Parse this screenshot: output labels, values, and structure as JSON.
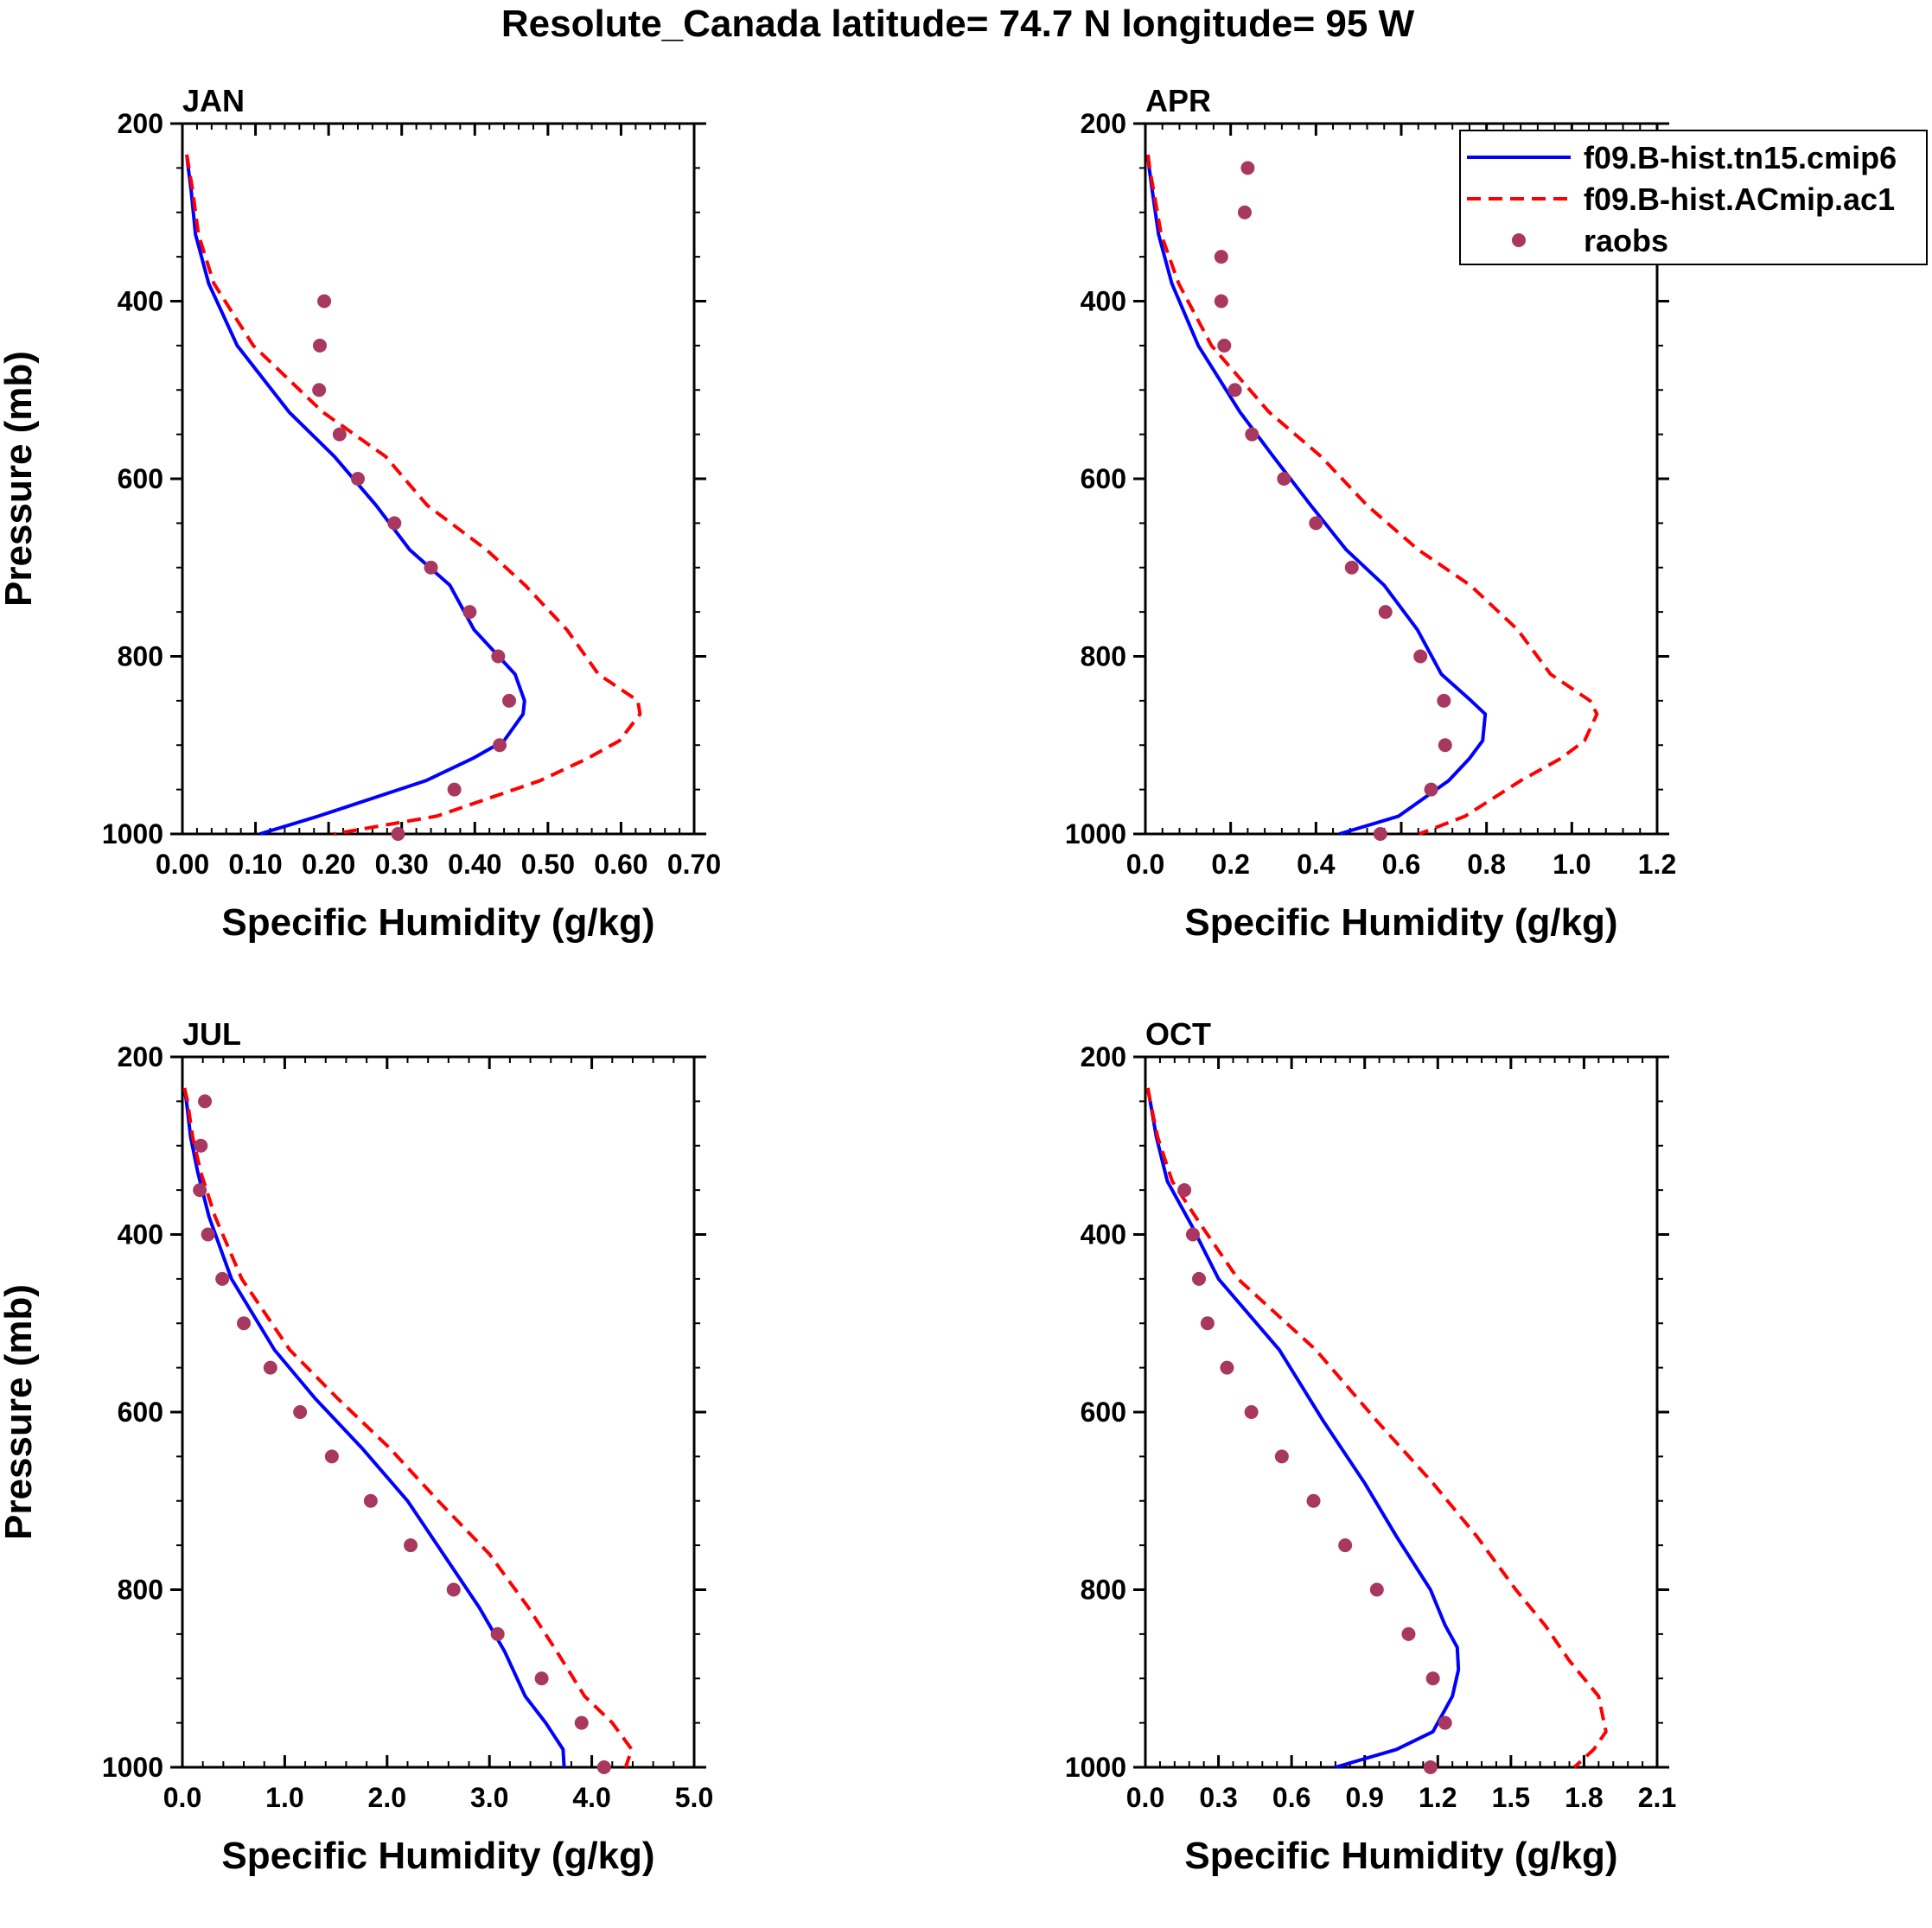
{
  "title": "Resolute_Canada  latitude= 74.7 N longitude= 95 W",
  "legend": {
    "position": "top-right of APR panel",
    "entries": [
      {
        "label": "f09.B-hist.tn15.cmip6",
        "style": "solid",
        "color": "#0000ff"
      },
      {
        "label": "f09.B-hist.ACmip.ac1",
        "style": "dashed",
        "color": "#ff0000"
      },
      {
        "label": "raobs",
        "style": "marker",
        "color": "#a8385f"
      }
    ]
  },
  "chart_data": [
    {
      "type": "line",
      "title": "JAN",
      "xlabel": "Specific Humidity (g/kg)",
      "ylabel": "Pressure (mb)",
      "xlim": [
        0,
        0.7
      ],
      "xticks": [
        "0.00",
        "0.10",
        "0.20",
        "0.30",
        "0.40",
        "0.50",
        "0.60",
        "0.70"
      ],
      "ylim": [
        200,
        1000
      ],
      "yticks": [
        "200",
        "400",
        "600",
        "800",
        "1000"
      ],
      "series": [
        {
          "name": "f09.B-hist.tn15.cmip6",
          "style": "solid",
          "color": "#0000ff",
          "x": [
            0.006,
            0.008,
            0.012,
            0.018,
            0.036,
            0.075,
            0.146,
            0.208,
            0.265,
            0.311,
            0.366,
            0.399,
            0.455,
            0.468,
            0.466,
            0.44,
            0.397,
            0.333,
            0.186,
            0.106
          ],
          "y": [
            235,
            250,
            275,
            325,
            380,
            450,
            525,
            575,
            630,
            680,
            720,
            770,
            820,
            850,
            865,
            895,
            915,
            940,
            980,
            1000
          ]
        },
        {
          "name": "f09.B-hist.ACmip.ac1",
          "style": "dashed",
          "color": "#ff0000",
          "x": [
            0.006,
            0.009,
            0.014,
            0.022,
            0.043,
            0.097,
            0.192,
            0.278,
            0.335,
            0.416,
            0.469,
            0.526,
            0.569,
            0.623,
            0.626,
            0.598,
            0.554,
            0.489,
            0.348,
            0.207
          ],
          "y": [
            235,
            250,
            275,
            325,
            380,
            450,
            525,
            575,
            630,
            680,
            720,
            770,
            820,
            850,
            865,
            895,
            915,
            940,
            980,
            1000
          ]
        },
        {
          "name": "raobs",
          "style": "marker",
          "color": "#a8385f",
          "x": [
            0.194,
            0.188,
            0.187,
            0.215,
            0.24,
            0.29,
            0.34,
            0.393,
            0.432,
            0.447,
            0.434,
            0.372,
            0.295
          ],
          "y": [
            400,
            450,
            500,
            550,
            600,
            650,
            700,
            750,
            800,
            850,
            900,
            950,
            1000
          ]
        }
      ]
    },
    {
      "type": "line",
      "title": "APR",
      "xlabel": "Specific Humidity (g/kg)",
      "ylabel": "",
      "xlim": [
        0,
        1.2
      ],
      "xticks": [
        "0.0",
        "0.2",
        "0.4",
        "0.6",
        "0.8",
        "1.0",
        "1.2"
      ],
      "ylim": [
        200,
        1000
      ],
      "yticks": [
        "200",
        "400",
        "600",
        "800",
        "1000"
      ],
      "series": [
        {
          "name": "f09.B-hist.tn15.cmip6",
          "style": "solid",
          "color": "#0000ff",
          "x": [
            0.006,
            0.009,
            0.016,
            0.031,
            0.062,
            0.124,
            0.222,
            0.3,
            0.388,
            0.471,
            0.56,
            0.638,
            0.694,
            0.764,
            0.797,
            0.791,
            0.76,
            0.711,
            0.594,
            0.455
          ],
          "y": [
            235,
            250,
            275,
            325,
            380,
            450,
            525,
            575,
            630,
            680,
            720,
            770,
            820,
            850,
            865,
            895,
            915,
            940,
            980,
            1000
          ]
        },
        {
          "name": "f09.B-hist.ACmip.ac1",
          "style": "dashed",
          "color": "#ff0000",
          "x": [
            0.006,
            0.01,
            0.019,
            0.037,
            0.078,
            0.155,
            0.29,
            0.412,
            0.52,
            0.64,
            0.762,
            0.873,
            0.95,
            1.043,
            1.059,
            1.03,
            0.974,
            0.88,
            0.75,
            0.642
          ],
          "y": [
            235,
            250,
            275,
            325,
            380,
            450,
            525,
            575,
            630,
            680,
            720,
            770,
            820,
            850,
            865,
            895,
            915,
            940,
            980,
            1000
          ]
        },
        {
          "name": "raobs",
          "style": "marker",
          "color": "#a8385f",
          "x": [
            0.24,
            0.233,
            0.178,
            0.178,
            0.185,
            0.21,
            0.25,
            0.325,
            0.4,
            0.484,
            0.563,
            0.645,
            0.7,
            0.703,
            0.67,
            0.551
          ],
          "y": [
            250,
            300,
            350,
            400,
            450,
            500,
            550,
            600,
            650,
            700,
            750,
            800,
            850,
            900,
            950,
            1000
          ]
        }
      ]
    },
    {
      "type": "line",
      "title": "JUL",
      "xlabel": "Specific Humidity (g/kg)",
      "ylabel": "Pressure (mb)",
      "xlim": [
        0,
        5
      ],
      "xticks": [
        "0.0",
        "1.0",
        "2.0",
        "3.0",
        "4.0",
        "5.0"
      ],
      "ylim": [
        200,
        1000
      ],
      "yticks": [
        "200",
        "400",
        "600",
        "800",
        "1000"
      ],
      "series": [
        {
          "name": "f09.B-hist.tn15.cmip6",
          "style": "solid",
          "color": "#0000ff",
          "x": [
            0.02,
            0.04,
            0.08,
            0.15,
            0.26,
            0.48,
            0.9,
            1.3,
            1.75,
            2.2,
            2.55,
            2.9,
            3.15,
            3.35,
            3.55,
            3.72,
            3.73
          ],
          "y": [
            235,
            250,
            290,
            330,
            380,
            450,
            530,
            585,
            640,
            700,
            760,
            820,
            870,
            920,
            950,
            980,
            1000
          ]
        },
        {
          "name": "f09.B-hist.ACmip.ac1",
          "style": "dashed",
          "color": "#ff0000",
          "x": [
            0.02,
            0.05,
            0.1,
            0.18,
            0.32,
            0.58,
            1.05,
            1.52,
            2.02,
            2.5,
            3.0,
            3.38,
            3.66,
            3.93,
            4.2,
            4.39,
            4.33
          ],
          "y": [
            235,
            250,
            290,
            330,
            380,
            450,
            530,
            585,
            640,
            700,
            760,
            820,
            870,
            920,
            950,
            980,
            1000
          ]
        },
        {
          "name": "raobs",
          "style": "marker",
          "color": "#a8385f",
          "x": [
            0.22,
            0.18,
            0.17,
            0.25,
            0.39,
            0.6,
            0.86,
            1.15,
            1.46,
            1.84,
            2.23,
            2.65,
            3.08,
            3.51,
            3.9,
            4.12
          ],
          "y": [
            250,
            300,
            350,
            400,
            450,
            500,
            550,
            600,
            650,
            700,
            750,
            800,
            850,
            900,
            950,
            1000
          ]
        }
      ]
    },
    {
      "type": "line",
      "title": "OCT",
      "xlabel": "Specific Humidity (g/kg)",
      "ylabel": "",
      "xlim": [
        0,
        2.1
      ],
      "xticks": [
        "0.0",
        "0.3",
        "0.6",
        "0.9",
        "1.2",
        "1.5",
        "1.8",
        "2.1"
      ],
      "ylim": [
        200,
        1000
      ],
      "yticks": [
        "200",
        "400",
        "600",
        "800",
        "1000"
      ],
      "series": [
        {
          "name": "f09.B-hist.tn15.cmip6",
          "style": "solid",
          "color": "#0000ff",
          "x": [
            0.01,
            0.02,
            0.045,
            0.09,
            0.19,
            0.3,
            0.55,
            0.73,
            0.9,
            1.03,
            1.17,
            1.23,
            1.28,
            1.285,
            1.26,
            1.18,
            1.03,
            0.78
          ],
          "y": [
            235,
            250,
            290,
            340,
            390,
            450,
            530,
            610,
            680,
            740,
            800,
            840,
            865,
            890,
            920,
            960,
            980,
            1000
          ]
        },
        {
          "name": "f09.B-hist.ACmip.ac1",
          "style": "dashed",
          "color": "#ff0000",
          "x": [
            0.01,
            0.02,
            0.05,
            0.11,
            0.23,
            0.38,
            0.7,
            0.95,
            1.18,
            1.36,
            1.52,
            1.64,
            1.74,
            1.86,
            1.89,
            1.84,
            1.76
          ],
          "y": [
            235,
            250,
            290,
            340,
            390,
            450,
            530,
            610,
            680,
            740,
            800,
            840,
            880,
            920,
            960,
            980,
            1000
          ]
        },
        {
          "name": "raobs",
          "style": "marker",
          "color": "#a8385f",
          "x": [
            0.16,
            0.195,
            0.22,
            0.255,
            0.335,
            0.435,
            0.56,
            0.69,
            0.82,
            0.95,
            1.08,
            1.18,
            1.23,
            1.17
          ],
          "y": [
            350,
            400,
            450,
            500,
            550,
            600,
            650,
            700,
            750,
            800,
            850,
            900,
            950,
            1000
          ]
        }
      ]
    }
  ]
}
